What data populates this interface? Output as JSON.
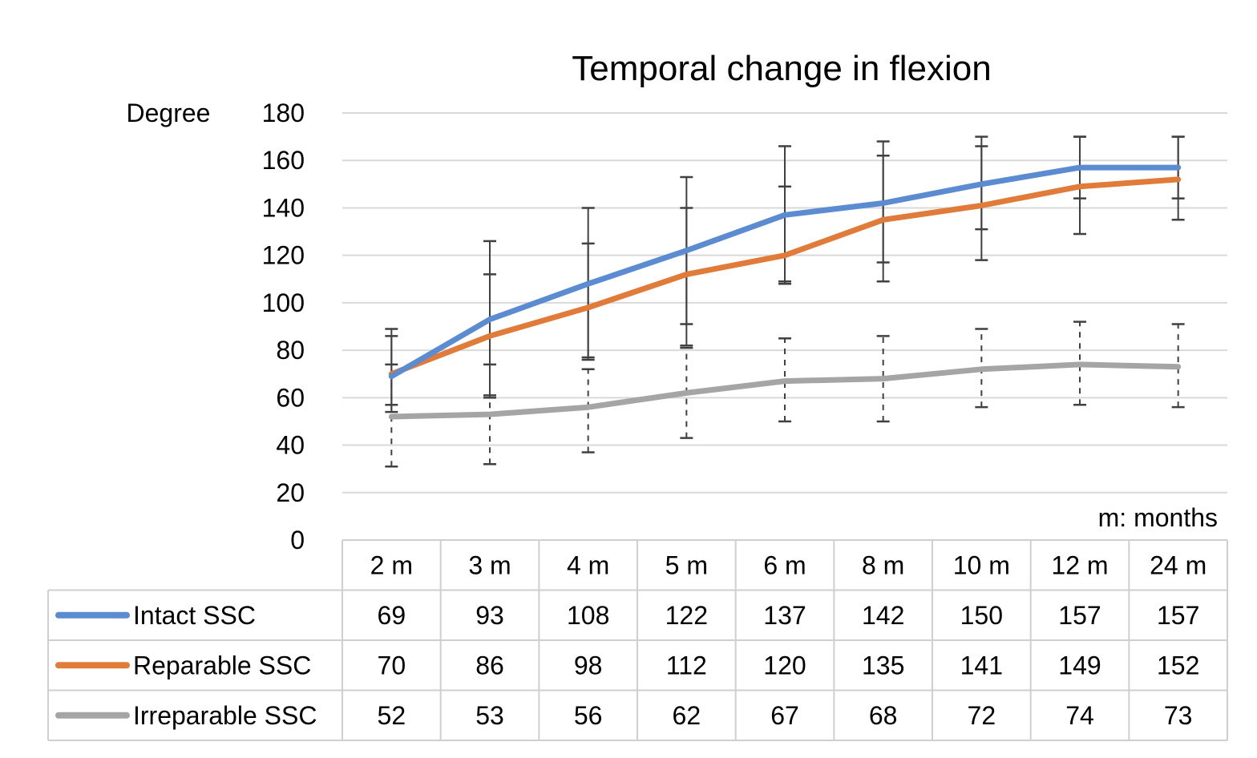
{
  "chart_data": {
    "type": "line",
    "title": "Temporal change in flexion",
    "ylabel": "Degree",
    "x_unit_note": "m: months",
    "ylim": [
      0,
      180
    ],
    "yticks": [
      0,
      20,
      40,
      60,
      80,
      100,
      120,
      140,
      160,
      180
    ],
    "categories": [
      "2 m",
      "3 m",
      "4 m",
      "5 m",
      "6 m",
      "8 m",
      "10 m",
      "12 m",
      "24 m"
    ],
    "grid": true,
    "legend": "data-table",
    "series": [
      {
        "name": "Intact SSC",
        "color": "#5b8bd0",
        "values": [
          69,
          93,
          108,
          122,
          137,
          142,
          150,
          157,
          157
        ],
        "error_low": [
          54,
          61,
          76,
          91,
          109,
          117,
          131,
          144,
          144
        ],
        "error_high": [
          86,
          112,
          125,
          140,
          149,
          162,
          166,
          170,
          170
        ],
        "error_style": "solid"
      },
      {
        "name": "Reparable SSC",
        "color": "#e07b39",
        "values": [
          70,
          86,
          98,
          112,
          120,
          135,
          141,
          149,
          152
        ],
        "error_low": [
          57,
          60,
          77,
          82,
          108,
          109,
          118,
          129,
          135
        ],
        "error_high": [
          89,
          126,
          140,
          153,
          166,
          168,
          170,
          170,
          170
        ],
        "error_style": "solid"
      },
      {
        "name": "Irreparable SSC",
        "color": "#a5a5a5",
        "values": [
          52,
          53,
          56,
          62,
          67,
          68,
          72,
          74,
          73
        ],
        "error_low": [
          31,
          32,
          37,
          43,
          50,
          50,
          56,
          57,
          56
        ],
        "error_high": [
          74,
          74,
          72,
          81,
          85,
          86,
          89,
          92,
          91
        ],
        "error_style": "dashed"
      }
    ]
  }
}
